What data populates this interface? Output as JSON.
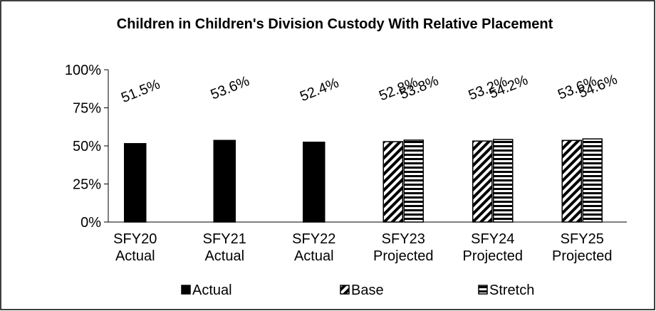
{
  "chart_data": {
    "type": "bar",
    "title": "Children in Children's Division Custody With Relative Placement",
    "categories": [
      "SFY20 Actual",
      "SFY21 Actual",
      "SFY22 Actual",
      "SFY23 Projected",
      "SFY24 Projected",
      "SFY25 Projected"
    ],
    "series": [
      {
        "name": "Actual",
        "color": "#000000",
        "pattern": "solid",
        "values": [
          51.5,
          53.6,
          52.4,
          null,
          null,
          null
        ],
        "value_labels": [
          "51.5%",
          "53.6%",
          "52.4%",
          null,
          null,
          null
        ]
      },
      {
        "name": "Base",
        "color": "#000000",
        "pattern": "diagonal",
        "values": [
          null,
          null,
          null,
          52.8,
          53.2,
          53.6
        ],
        "value_labels": [
          null,
          null,
          null,
          "52.8%",
          "53.2%",
          "53.6%"
        ]
      },
      {
        "name": "Stretch",
        "color": "#000000",
        "pattern": "horizontal",
        "values": [
          null,
          null,
          null,
          53.8,
          54.2,
          54.6
        ],
        "value_labels": [
          null,
          null,
          null,
          "53.8%",
          "54.2%",
          "54.6%"
        ]
      }
    ],
    "ylim": [
      0,
      100
    ],
    "yticks": [
      {
        "value": 0,
        "label": "0%"
      },
      {
        "value": 25,
        "label": "25%"
      },
      {
        "value": 50,
        "label": "50%"
      },
      {
        "value": 75,
        "label": "75%"
      },
      {
        "value": 100,
        "label": "100%"
      }
    ],
    "grid": false,
    "legend": "bottom"
  }
}
